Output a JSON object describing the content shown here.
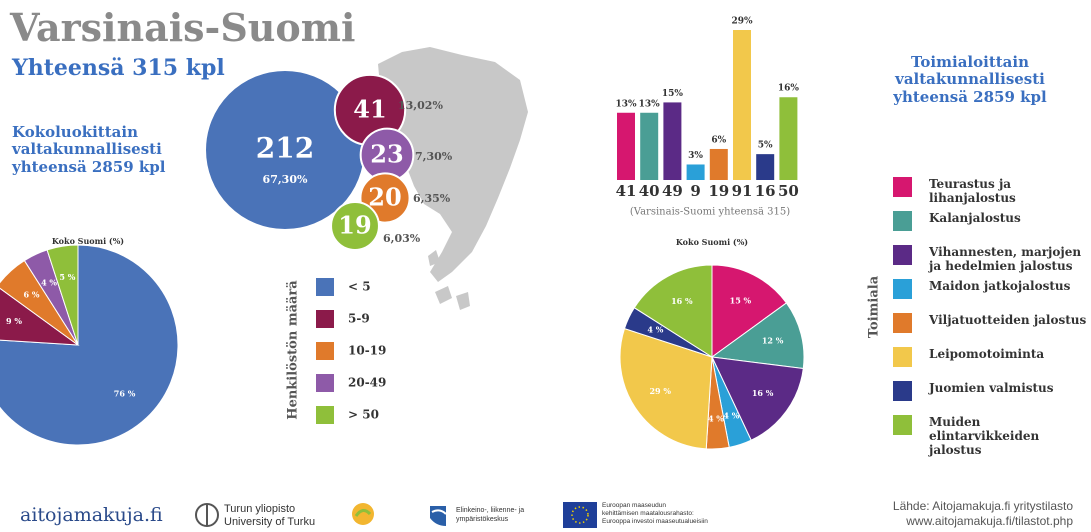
{
  "header": {
    "title": "Varsinais-Suomi",
    "subtitle": "Yhteensä 315 kpl"
  },
  "chart_data": [
    {
      "type": "pie",
      "caption": "Kokoluokittain valtakunnallisesti yhteensä 2859 kpl",
      "title": "Koko Suomi (%)",
      "values": [
        76,
        9,
        6,
        4,
        5
      ],
      "value_labels": [
        "76 %",
        "9 %",
        "6 %",
        "4 %",
        "5 %"
      ],
      "colors": [
        "#4a73b8",
        "#8b1a4a",
        "#e07a2b",
        "#8e5aa8",
        "#8fbf3a"
      ]
    },
    {
      "type": "bubble",
      "legend_title": "Henkilöstön määrä",
      "categories": [
        "< 5",
        "5-9",
        "10-19",
        "20-49",
        "> 50"
      ],
      "values": [
        212,
        41,
        23,
        20,
        19
      ],
      "shares": [
        67.3,
        13.02,
        7.3,
        6.35,
        6.03
      ],
      "share_labels": [
        "67,30%",
        "13,02%",
        "7,30%",
        "6,35%",
        "6,03%"
      ],
      "colors": [
        "#4a73b8",
        "#8b1a4a",
        "#8e5aa8",
        "#e07a2b",
        "#8fbf3a"
      ],
      "legend_colors": [
        "#4a73b8",
        "#8b1a4a",
        "#e07a2b",
        "#8e5aa8",
        "#8fbf3a"
      ]
    },
    {
      "type": "bar",
      "legend_title": "Toimiala",
      "subtitle": "(Varsinais-Suomi yhteensä 315)",
      "categories": [
        "Teurastus ja lihanjalostus",
        "Kalanjalostus",
        "Vihannesten, marjojen ja hedelmien jalostus",
        "Maidon jatkojalostus",
        "Viljatuotteiden jalostus",
        "Leipomotoiminta",
        "Juomien valmistus",
        "Muiden elintarvikkeiden jalostus"
      ],
      "values": [
        13,
        13,
        15,
        3,
        6,
        29,
        5,
        16
      ],
      "value_labels": [
        "13%",
        "13%",
        "15%",
        "3%",
        "6%",
        "29%",
        "5%",
        "16%"
      ],
      "counts": [
        41,
        40,
        49,
        9,
        19,
        91,
        16,
        50
      ],
      "colors": [
        "#d6176f",
        "#4a9e95",
        "#5b2a86",
        "#2aa0d8",
        "#e07a2b",
        "#f2c84b",
        "#2a3a8a",
        "#8fbf3a"
      ]
    },
    {
      "type": "pie",
      "caption": "Toimialoittain valtakunnallisesti yhteensä 2859 kpl",
      "title": "Koko Suomi (%)",
      "values": [
        15,
        12,
        16,
        4,
        4,
        29,
        4,
        16
      ],
      "value_labels": [
        "15 %",
        "12 %",
        "16 %",
        "4 %",
        "4 %",
        "29 %",
        "4 %",
        "16 %"
      ],
      "colors": [
        "#d6176f",
        "#4a9e95",
        "#5b2a86",
        "#2aa0d8",
        "#e07a2b",
        "#f2c84b",
        "#2a3a8a",
        "#8fbf3a"
      ]
    }
  ],
  "footer": {
    "site": "aitojamakuja.fi",
    "university": [
      "Turun yliopisto",
      "University of Turku"
    ],
    "ely": [
      "Elinkeino-, liikenne- ja",
      "ympäristökeskus"
    ],
    "eu": [
      "Euroopan maaseudun",
      "kehittämisen maatalousrahasto:",
      "Eurooppa investoi maaseutualueisiin"
    ],
    "source": "Lähde: Aitojamakuja.fi yritystilasto",
    "url": "www.aitojamakuja.fi/tilastot.php"
  }
}
